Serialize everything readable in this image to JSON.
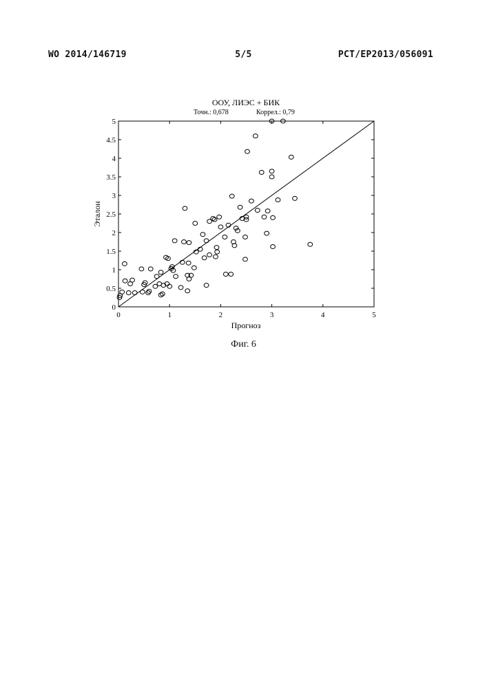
{
  "header": {
    "left": "WO 2014/146719",
    "center": "5/5",
    "right": "PCT/EP2013/056091"
  },
  "caption": "Фиг. 6",
  "chart_data": {
    "type": "scatter",
    "title": "ООУ, ЛИЭС + БИК",
    "subtitle_left": "Точн.: 0,678",
    "subtitle_right": "Коррел.: 0,79",
    "xlabel": "Прогноз",
    "ylabel": "Эталон",
    "xlim": [
      0,
      5
    ],
    "ylim": [
      0,
      5
    ],
    "xticks": [
      "0",
      "1",
      "2",
      "3",
      "4",
      "5"
    ],
    "yticks": [
      "0",
      "0.5",
      "1",
      "1.5",
      "2",
      "2.5",
      "3",
      "3.5",
      "4",
      "4.5",
      "5"
    ],
    "reference_line": {
      "from": [
        0,
        0
      ],
      "to": [
        5,
        5
      ]
    },
    "marker": "open-circle",
    "grid": false,
    "points": [
      [
        0.02,
        0.25
      ],
      [
        0.03,
        0.3
      ],
      [
        0.07,
        0.4
      ],
      [
        0.12,
        1.16
      ],
      [
        0.13,
        0.7
      ],
      [
        0.2,
        0.38
      ],
      [
        0.23,
        0.62
      ],
      [
        0.27,
        0.72
      ],
      [
        0.32,
        0.38
      ],
      [
        0.45,
        1.02
      ],
      [
        0.47,
        0.4
      ],
      [
        0.5,
        0.6
      ],
      [
        0.52,
        0.65
      ],
      [
        0.58,
        0.38
      ],
      [
        0.6,
        0.42
      ],
      [
        0.63,
        1.02
      ],
      [
        0.72,
        0.55
      ],
      [
        0.75,
        0.82
      ],
      [
        0.8,
        0.62
      ],
      [
        0.83,
        0.93
      ],
      [
        0.83,
        0.32
      ],
      [
        0.86,
        0.35
      ],
      [
        0.88,
        0.58
      ],
      [
        0.93,
        1.33
      ],
      [
        0.95,
        0.62
      ],
      [
        0.97,
        1.3
      ],
      [
        1.0,
        0.55
      ],
      [
        1.03,
        1.03
      ],
      [
        1.05,
        1.08
      ],
      [
        1.07,
        0.98
      ],
      [
        1.1,
        1.78
      ],
      [
        1.12,
        0.82
      ],
      [
        1.22,
        0.52
      ],
      [
        1.25,
        1.2
      ],
      [
        1.28,
        1.75
      ],
      [
        1.3,
        2.65
      ],
      [
        1.35,
        0.43
      ],
      [
        1.35,
        0.85
      ],
      [
        1.37,
        1.18
      ],
      [
        1.38,
        1.73
      ],
      [
        1.38,
        0.75
      ],
      [
        1.42,
        0.85
      ],
      [
        1.48,
        1.05
      ],
      [
        1.5,
        2.25
      ],
      [
        1.52,
        1.48
      ],
      [
        1.6,
        1.55
      ],
      [
        1.65,
        1.95
      ],
      [
        1.68,
        1.32
      ],
      [
        1.72,
        0.58
      ],
      [
        1.72,
        1.78
      ],
      [
        1.78,
        1.4
      ],
      [
        1.78,
        2.3
      ],
      [
        1.85,
        2.38
      ],
      [
        1.88,
        2.35
      ],
      [
        1.9,
        1.35
      ],
      [
        1.92,
        1.6
      ],
      [
        1.93,
        1.48
      ],
      [
        1.97,
        2.42
      ],
      [
        2.0,
        2.15
      ],
      [
        2.08,
        1.88
      ],
      [
        2.1,
        0.88
      ],
      [
        2.15,
        2.2
      ],
      [
        2.2,
        0.88
      ],
      [
        2.22,
        2.98
      ],
      [
        2.25,
        1.75
      ],
      [
        2.27,
        1.65
      ],
      [
        2.3,
        2.12
      ],
      [
        2.33,
        2.05
      ],
      [
        2.38,
        2.68
      ],
      [
        2.42,
        2.38
      ],
      [
        2.48,
        1.28
      ],
      [
        2.48,
        1.88
      ],
      [
        2.5,
        2.42
      ],
      [
        2.5,
        2.35
      ],
      [
        2.52,
        4.18
      ],
      [
        2.6,
        2.85
      ],
      [
        2.68,
        4.6
      ],
      [
        2.72,
        2.6
      ],
      [
        2.8,
        3.62
      ],
      [
        2.85,
        2.42
      ],
      [
        2.9,
        1.98
      ],
      [
        2.92,
        2.58
      ],
      [
        3.0,
        5.0
      ],
      [
        3.0,
        3.65
      ],
      [
        3.0,
        3.5
      ],
      [
        3.02,
        2.4
      ],
      [
        3.02,
        1.62
      ],
      [
        3.12,
        2.88
      ],
      [
        3.22,
        5.0
      ],
      [
        3.38,
        4.03
      ],
      [
        3.45,
        2.92
      ],
      [
        3.75,
        1.68
      ]
    ]
  }
}
